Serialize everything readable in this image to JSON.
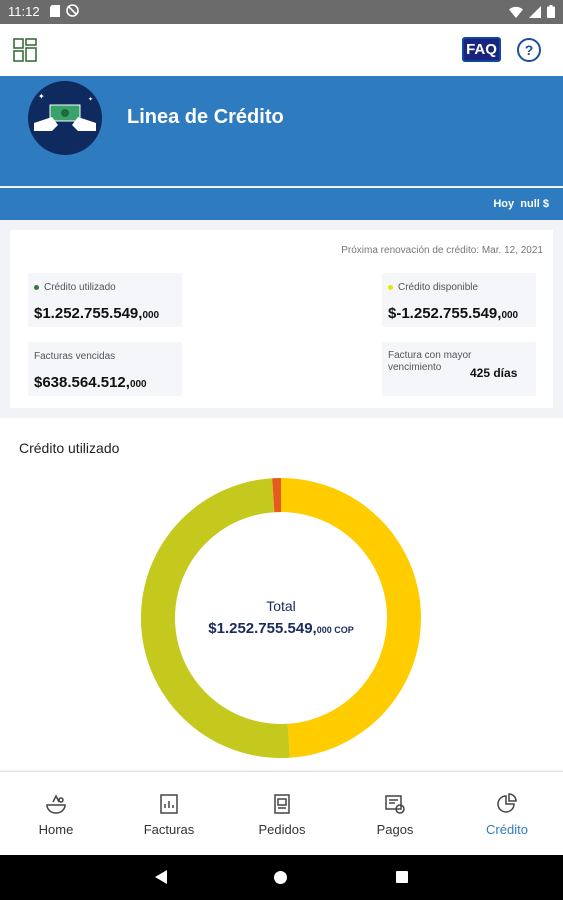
{
  "status_bar": {
    "time": "11:12"
  },
  "header": {
    "faq_label": "FAQ"
  },
  "hero": {
    "title": "Linea de Crédito",
    "today_label": "Hoy",
    "today_value": "null $"
  },
  "summary": {
    "renewal": "Próxima renovación de crédito: Mar. 12, 2021",
    "used": {
      "label": "Crédito utilizado",
      "value": "$1.252.755.549,",
      "decimals": "000",
      "dot_color": "#2e7d32"
    },
    "available": {
      "label": "Crédito disponible",
      "value": "$-1.252.755.549,",
      "decimals": "000",
      "dot_color": "#e6e600"
    },
    "overdue": {
      "label": "Facturas vencidas",
      "value": "$638.564.512,",
      "decimals": "000"
    },
    "longest": {
      "label": "Factura con mayor vencimiento",
      "value": "425 días"
    }
  },
  "chart": {
    "heading": "Crédito utilizado",
    "total_label": "Total",
    "total_value": "$1.252.755.549,",
    "total_decimals": "000 COP"
  },
  "chart_data": {
    "type": "pie",
    "donut": true,
    "slices": [
      {
        "value": 49,
        "color": "#ffcc00"
      },
      {
        "value": 50,
        "color": "#c5c91e"
      },
      {
        "value": 1,
        "color": "#e65a1e"
      }
    ]
  },
  "nav": {
    "items": [
      {
        "label": "Home",
        "icon": "home-bowl-icon"
      },
      {
        "label": "Facturas",
        "icon": "invoice-icon"
      },
      {
        "label": "Pedidos",
        "icon": "order-icon"
      },
      {
        "label": "Pagos",
        "icon": "payment-icon"
      },
      {
        "label": "Crédito",
        "icon": "pie-chart-icon"
      }
    ],
    "active_color": "#2f7bbf"
  }
}
